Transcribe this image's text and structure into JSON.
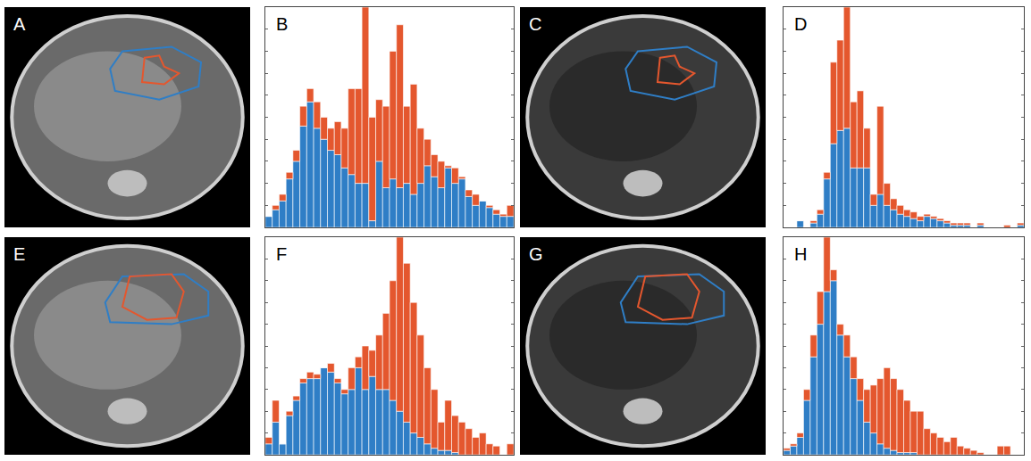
{
  "chart_data": [
    {
      "type": "bar",
      "title": "B",
      "stacked": true,
      "tick_labels": false,
      "bins": [
        0,
        1,
        2,
        3,
        4,
        5,
        6,
        7,
        8,
        9,
        10,
        11,
        12,
        13,
        14,
        15,
        16,
        17,
        18,
        19,
        20,
        21,
        22,
        23,
        24,
        25,
        26,
        27,
        28,
        29,
        30,
        31,
        32,
        33,
        34,
        35,
        36
      ],
      "xlim": [
        0,
        36
      ],
      "ylim": [
        0,
        100
      ],
      "yticks": [
        0,
        10,
        20,
        30,
        40,
        50,
        60,
        70,
        80,
        90,
        100
      ],
      "series": [
        {
          "color": "#2f7ec6",
          "values": [
            5,
            8,
            12,
            22,
            30,
            46,
            57,
            45,
            40,
            35,
            33,
            27,
            24,
            20,
            20,
            3,
            30,
            18,
            22,
            18,
            20,
            15,
            20,
            28,
            23,
            18,
            27,
            20,
            22,
            14,
            10,
            12,
            9,
            6,
            5,
            5
          ]
        },
        {
          "color": "#e4572e",
          "values": [
            0,
            2,
            3,
            3,
            5,
            9,
            6,
            12,
            10,
            10,
            15,
            18,
            39,
            43,
            80,
            47,
            28,
            37,
            58,
            74,
            35,
            50,
            25,
            12,
            10,
            12,
            1,
            7,
            1,
            3,
            5,
            0,
            1,
            2,
            1,
            5
          ]
        }
      ]
    },
    {
      "type": "bar",
      "title": "D",
      "stacked": true,
      "tick_labels": false,
      "bins": [
        0,
        1,
        2,
        3,
        4,
        5,
        6,
        7,
        8,
        9,
        10,
        11,
        12,
        13,
        14,
        15,
        16,
        17,
        18,
        19,
        20,
        21,
        22,
        23,
        24,
        25,
        26,
        27,
        28,
        29,
        30,
        31,
        32,
        33,
        34,
        35,
        36
      ],
      "xlim": [
        0,
        36
      ],
      "ylim": [
        0,
        100
      ],
      "yticks": [
        0,
        10,
        20,
        30,
        40,
        50,
        60,
        70,
        80,
        90,
        100
      ],
      "series": [
        {
          "color": "#2f7ec6",
          "values": [
            0,
            0,
            3,
            0,
            2,
            6,
            22,
            38,
            44,
            45,
            27,
            27,
            27,
            10,
            15,
            10,
            8,
            6,
            5,
            4,
            3,
            5,
            4,
            3,
            2,
            1,
            1,
            1,
            0,
            1,
            0,
            0,
            0,
            0,
            0,
            1
          ]
        },
        {
          "color": "#e4572e",
          "values": [
            0,
            0,
            0,
            0,
            1,
            2,
            3,
            37,
            41,
            55,
            30,
            35,
            18,
            5,
            40,
            10,
            5,
            4,
            3,
            3,
            2,
            1,
            1,
            1,
            1,
            1,
            1,
            1,
            0,
            1,
            0,
            0,
            0,
            1,
            0,
            1
          ]
        }
      ]
    },
    {
      "type": "bar",
      "title": "F",
      "stacked": true,
      "tick_labels": false,
      "bins": [
        0,
        1,
        2,
        3,
        4,
        5,
        6,
        7,
        8,
        9,
        10,
        11,
        12,
        13,
        14,
        15,
        16,
        17,
        18,
        19,
        20,
        21,
        22,
        23,
        24,
        25,
        26,
        27,
        28,
        29,
        30,
        31,
        32,
        33,
        34,
        35,
        36
      ],
      "xlim": [
        0,
        36
      ],
      "ylim": [
        0,
        100
      ],
      "yticks": [
        0,
        10,
        20,
        30,
        40,
        50,
        60,
        70,
        80,
        90,
        100
      ],
      "series": [
        {
          "color": "#2f7ec6",
          "values": [
            5,
            15,
            5,
            18,
            25,
            33,
            35,
            35,
            40,
            38,
            33,
            28,
            30,
            40,
            30,
            36,
            30,
            30,
            25,
            20,
            15,
            10,
            8,
            5,
            3,
            2,
            2,
            1,
            0,
            0,
            0,
            0,
            0,
            0,
            0,
            0
          ]
        },
        {
          "color": "#e4572e",
          "values": [
            3,
            10,
            0,
            2,
            2,
            2,
            3,
            2,
            0,
            4,
            2,
            2,
            10,
            5,
            20,
            12,
            25,
            35,
            55,
            80,
            73,
            60,
            47,
            35,
            27,
            13,
            23,
            17,
            15,
            12,
            8,
            10,
            5,
            4,
            0,
            5
          ]
        }
      ]
    },
    {
      "type": "bar",
      "title": "H",
      "stacked": true,
      "tick_labels": false,
      "bins": [
        0,
        1,
        2,
        3,
        4,
        5,
        6,
        7,
        8,
        9,
        10,
        11,
        12,
        13,
        14,
        15,
        16,
        17,
        18,
        19,
        20,
        21,
        22,
        23,
        24,
        25,
        26,
        27,
        28,
        29,
        30,
        31,
        32,
        33,
        34,
        35,
        36
      ],
      "xlim": [
        0,
        36
      ],
      "ylim": [
        0,
        100
      ],
      "yticks": [
        0,
        10,
        20,
        30,
        40,
        50,
        60,
        70,
        80,
        90,
        100
      ],
      "series": [
        {
          "color": "#2f7ec6",
          "values": [
            2,
            4,
            8,
            25,
            45,
            60,
            75,
            80,
            55,
            45,
            35,
            25,
            15,
            10,
            5,
            3,
            2,
            1,
            1,
            1,
            0,
            0,
            0,
            0,
            0,
            0,
            0,
            0,
            0,
            0,
            0,
            0,
            0,
            0,
            0,
            0
          ]
        },
        {
          "color": "#e4572e",
          "values": [
            1,
            1,
            2,
            5,
            10,
            15,
            25,
            5,
            5,
            10,
            10,
            10,
            15,
            22,
            30,
            37,
            33,
            29,
            24,
            19,
            20,
            12,
            10,
            8,
            6,
            8,
            4,
            3,
            2,
            1,
            0,
            0,
            4,
            4,
            0,
            0
          ]
        }
      ]
    }
  ],
  "images": [
    {
      "panel": "A"
    },
    {
      "panel": "C"
    },
    {
      "panel": "E"
    },
    {
      "panel": "G"
    }
  ]
}
